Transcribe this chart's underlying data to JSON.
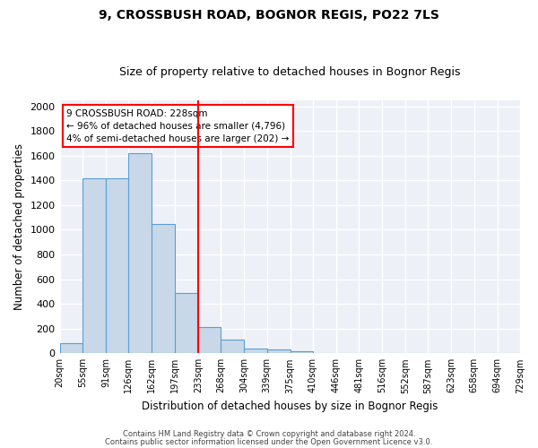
{
  "title1": "9, CROSSBUSH ROAD, BOGNOR REGIS, PO22 7LS",
  "title2": "Size of property relative to detached houses in Bognor Regis",
  "xlabel": "Distribution of detached houses by size in Bognor Regis",
  "ylabel": "Number of detached properties",
  "bin_edges": [
    20,
    55,
    91,
    126,
    162,
    197,
    233,
    268,
    304,
    339,
    375,
    410,
    446,
    481,
    516,
    552,
    587,
    623,
    658,
    694,
    729
  ],
  "bar_heights": [
    80,
    1420,
    1420,
    1620,
    1050,
    490,
    210,
    110,
    40,
    30,
    20,
    5,
    3,
    2,
    0,
    0,
    0,
    0,
    0,
    0
  ],
  "bar_color": "#c8d8e8",
  "bar_edge_color": "#5a9fd4",
  "vline_x": 233,
  "vline_color": "red",
  "ylim": [
    0,
    2050
  ],
  "yticks": [
    0,
    200,
    400,
    600,
    800,
    1000,
    1200,
    1400,
    1600,
    1800,
    2000
  ],
  "annotation_text": "9 CROSSBUSH ROAD: 228sqm\n← 96% of detached houses are smaller (4,796)\n4% of semi-detached houses are larger (202) →",
  "annotation_box_color": "white",
  "annotation_box_edge_color": "red",
  "bg_color": "#edf1f7",
  "grid_color": "white",
  "footer1": "Contains HM Land Registry data © Crown copyright and database right 2024.",
  "footer2": "Contains public sector information licensed under the Open Government Licence v3.0."
}
